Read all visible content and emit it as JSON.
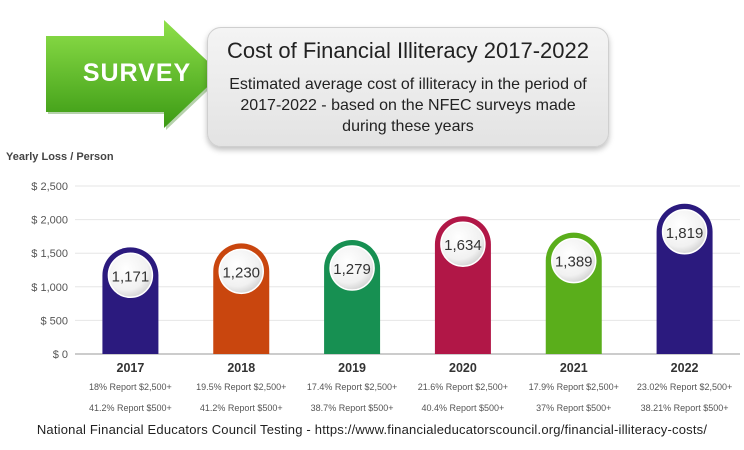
{
  "banner": {
    "tag": "SURVEY",
    "title": "Cost of Financial Illiteracy 2017-2022",
    "subtitle": "Estimated average cost of illiteracy in the period of 2017-2022 - based on the NFEC surveys made during these years"
  },
  "colors": {
    "arrow": "#5fbf2a",
    "grid": "#e6e6e6",
    "axis": "#999999"
  },
  "chart_data": {
    "type": "bar",
    "ylabel": "Yearly Loss / Person",
    "ylim": [
      0,
      2500
    ],
    "y_ticks": [
      0,
      500,
      1000,
      1500,
      2000,
      2500
    ],
    "y_tick_labels": [
      "$ 0",
      "$ 500",
      "$ 1,000",
      "$ 1,500",
      "$ 2,000",
      "$ 2,500"
    ],
    "grid": true,
    "categories": [
      "2017",
      "2018",
      "2019",
      "2020",
      "2021",
      "2022"
    ],
    "values": [
      1171,
      1230,
      1279,
      1634,
      1389,
      1819
    ],
    "value_labels": [
      "1,171",
      "1,230",
      "1,279",
      "1,634",
      "1,389",
      "1,819"
    ],
    "bar_colors": [
      "#2b1a7e",
      "#c9460e",
      "#179052",
      "#b11747",
      "#5aae1b",
      "#2b1a7e"
    ],
    "notes_line1": [
      "18% Report $2,500+",
      "19.5% Report $2,500+",
      "17.4% Report $2,500+",
      "21.6% Report $2,500+",
      "17.9% Report $2,500+",
      "23.02% Report $2,500+"
    ],
    "notes_line2": [
      "41.2% Report $500+",
      "41.2% Report $500+",
      "38.7% Report $500+",
      "40.4% Report $500+",
      "37% Report $500+",
      "38.21% Report $500+"
    ]
  },
  "footer": "National Financial Educators Council Testing  -  https://www.financialeducatorscouncil.org/financial-illiteracy-costs/"
}
